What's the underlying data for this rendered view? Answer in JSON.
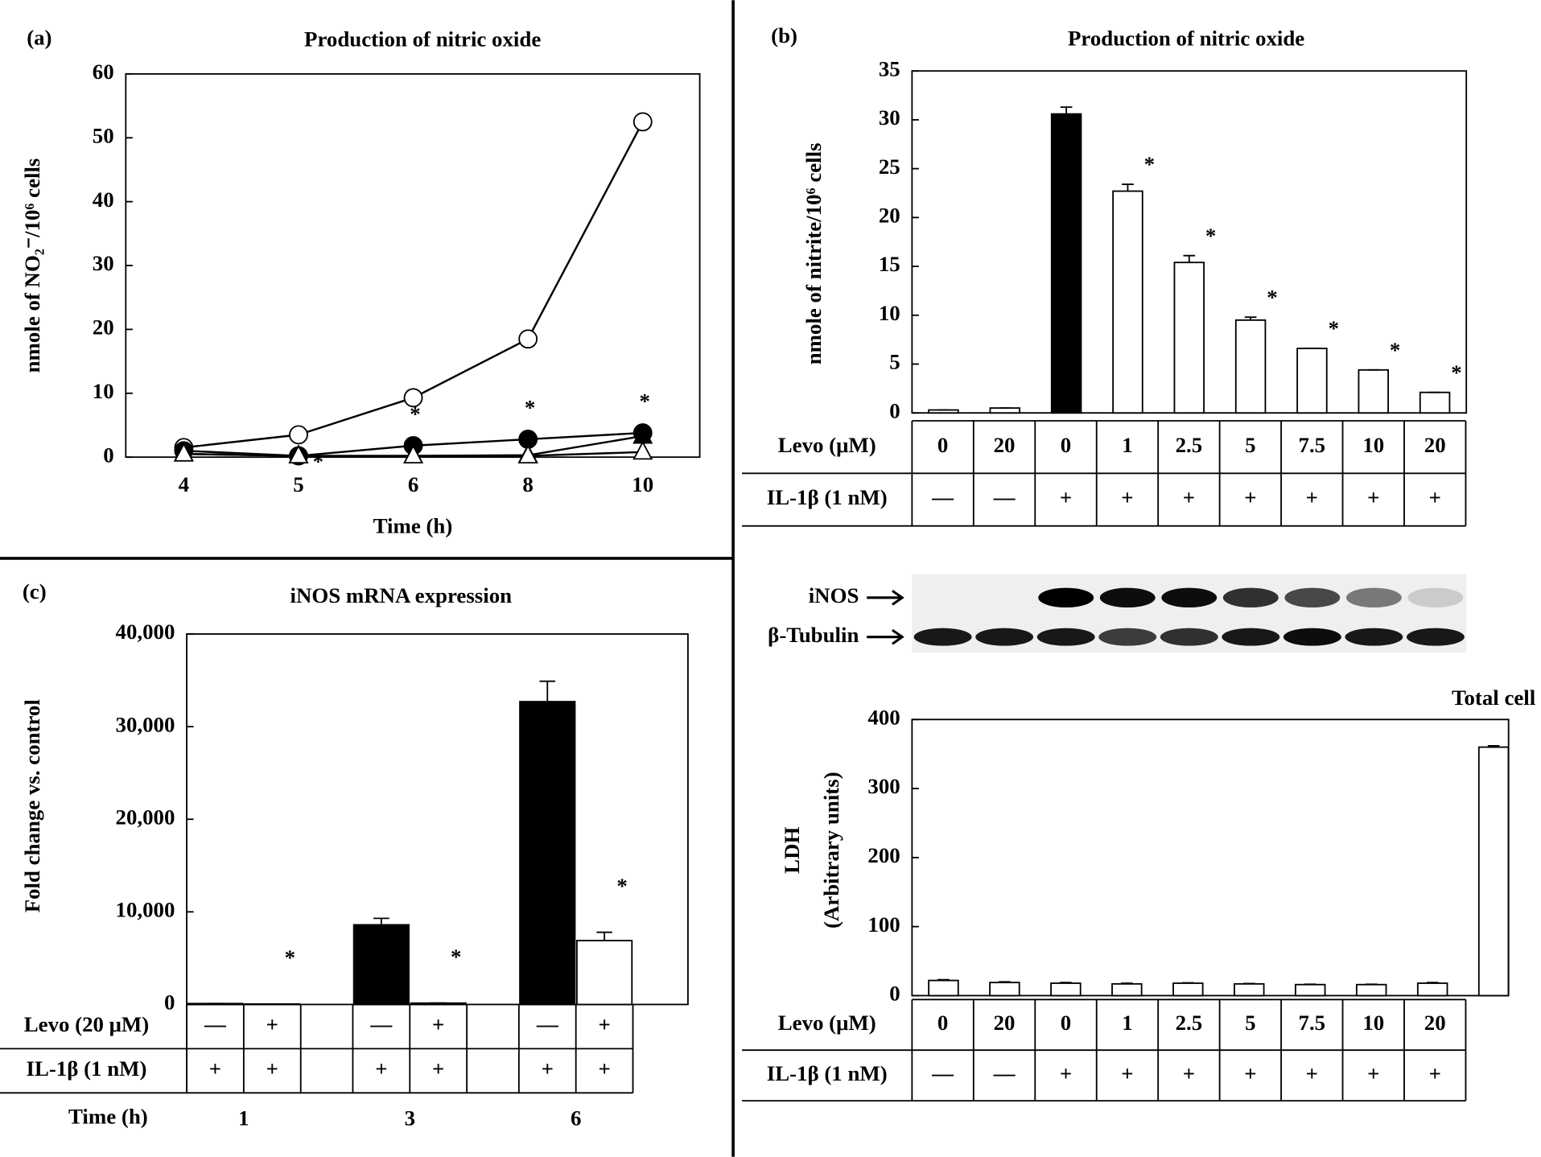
{
  "chart_data": [
    {
      "type": "line",
      "panel_label": "(a)",
      "title": "Production of nitric oxide",
      "x_label": "Time (h)",
      "y_label": "nmole of NO₂⁻/10⁶ cells",
      "categories": [
        "4",
        "5",
        "6",
        "8",
        "10"
      ],
      "series": [
        {
          "marker": "open-circle",
          "color": "#000000",
          "values": [
            1.5,
            3.5,
            9.3,
            18.5,
            52.5
          ]
        },
        {
          "marker": "filled-circle",
          "color": "#000000",
          "values": [
            1,
            0.2,
            1.8,
            2.8,
            3.8
          ]
        },
        {
          "marker": "filled-triangle",
          "color": "#000000",
          "values": [
            0.5,
            0.2,
            0.2,
            0.3,
            3.3
          ]
        },
        {
          "marker": "open-triangle",
          "color": "#000000",
          "values": [
            0.5,
            0.2,
            0.2,
            0.2,
            0.8
          ]
        }
      ],
      "significance": [
        null,
        "*",
        "*",
        "*",
        "*"
      ],
      "ylim": [
        0,
        60
      ],
      "yticks": [
        0,
        10,
        20,
        30,
        40,
        50,
        60
      ]
    },
    {
      "type": "bar",
      "panel_label": "(b)",
      "title": "Production of nitric oxide",
      "y_label": "nmole of nitrite/10⁶ cells",
      "values": [
        0.3,
        0.5,
        30.6,
        22.7,
        15.4,
        9.5,
        6.6,
        4.4,
        2.1
      ],
      "errors": [
        0,
        0,
        0.7,
        0.7,
        0.7,
        0.3,
        0,
        0,
        0
      ],
      "colors": [
        "#ffffff",
        "#ffffff",
        "#000000",
        "#ffffff",
        "#ffffff",
        "#ffffff",
        "#ffffff",
        "#ffffff",
        "#ffffff"
      ],
      "significance": [
        null,
        null,
        null,
        "*",
        "*",
        "*",
        "*",
        "*",
        "*"
      ],
      "ylim": [
        0,
        35
      ],
      "yticks": [
        0,
        5,
        10,
        15,
        20,
        25,
        30,
        35
      ],
      "table": {
        "rows": [
          {
            "label": "Levo (μM)",
            "cells": [
              "0",
              "20",
              "0",
              "1",
              "2.5",
              "5",
              "7.5",
              "10",
              "20"
            ]
          },
          {
            "label": "IL-1β (1 nM)",
            "cells": [
              "—",
              "—",
              "+",
              "+",
              "+",
              "+",
              "+",
              "+",
              "+"
            ]
          }
        ]
      }
    },
    {
      "type": "blot",
      "labels": [
        "iNOS",
        "β-Tubulin"
      ]
    },
    {
      "type": "bar",
      "y_label": "LDH",
      "y_sublabel": "(Arbitrary units)",
      "values": [
        22,
        19,
        18,
        17,
        18,
        17,
        16,
        16,
        18,
        360
      ],
      "errors": [
        1,
        1,
        1,
        1,
        0.5,
        0.5,
        0.5,
        0.5,
        1,
        2
      ],
      "colors": [
        "#ffffff",
        "#ffffff",
        "#ffffff",
        "#ffffff",
        "#ffffff",
        "#ffffff",
        "#ffffff",
        "#ffffff",
        "#ffffff",
        "#ffffff"
      ],
      "bar_labels": [
        null,
        null,
        null,
        null,
        null,
        null,
        null,
        null,
        null,
        "Total cell"
      ],
      "ylim": [
        0,
        400
      ],
      "yticks": [
        0,
        100,
        200,
        300,
        400
      ],
      "table": {
        "rows": [
          {
            "label": "Levo (μM)",
            "cells": [
              "0",
              "20",
              "0",
              "1",
              "2.5",
              "5",
              "7.5",
              "10",
              "20"
            ]
          },
          {
            "label": "IL-1β (1 nM)",
            "cells": [
              "—",
              "—",
              "+",
              "+",
              "+",
              "+",
              "+",
              "+",
              "+"
            ]
          }
        ]
      }
    },
    {
      "type": "grouped_bar",
      "panel_label": "(c)",
      "title": "iNOS mRNA expression",
      "y_label": "Fold change vs. control",
      "categories": [
        "1",
        "3",
        "6"
      ],
      "category_label": "Time (h)",
      "series": [
        {
          "color": "#000000",
          "values": [
            100,
            8600,
            32700
          ],
          "errors": [
            0,
            700,
            2200
          ]
        },
        {
          "color": "#ffffff",
          "values": [
            50,
            150,
            6900
          ],
          "errors": [
            0,
            0,
            900
          ],
          "significance": [
            "*",
            "*",
            "*"
          ]
        }
      ],
      "ylim": [
        0,
        40000
      ],
      "yticks": [
        0,
        {
          "value": 10000,
          "label": "10,000"
        },
        {
          "value": 20000,
          "label": "20,000"
        },
        {
          "value": 30000,
          "label": "30,000"
        },
        {
          "value": 40000,
          "label": "40,000"
        }
      ],
      "table": {
        "rows": [
          {
            "label": "Levo (20 μM)",
            "cells": [
              "—",
              "+",
              "—",
              "+",
              "—",
              "+"
            ]
          },
          {
            "label": "IL-1β (1 nM)",
            "cells": [
              "+",
              "+",
              "+",
              "+",
              "+",
              "+"
            ]
          }
        ]
      }
    }
  ]
}
